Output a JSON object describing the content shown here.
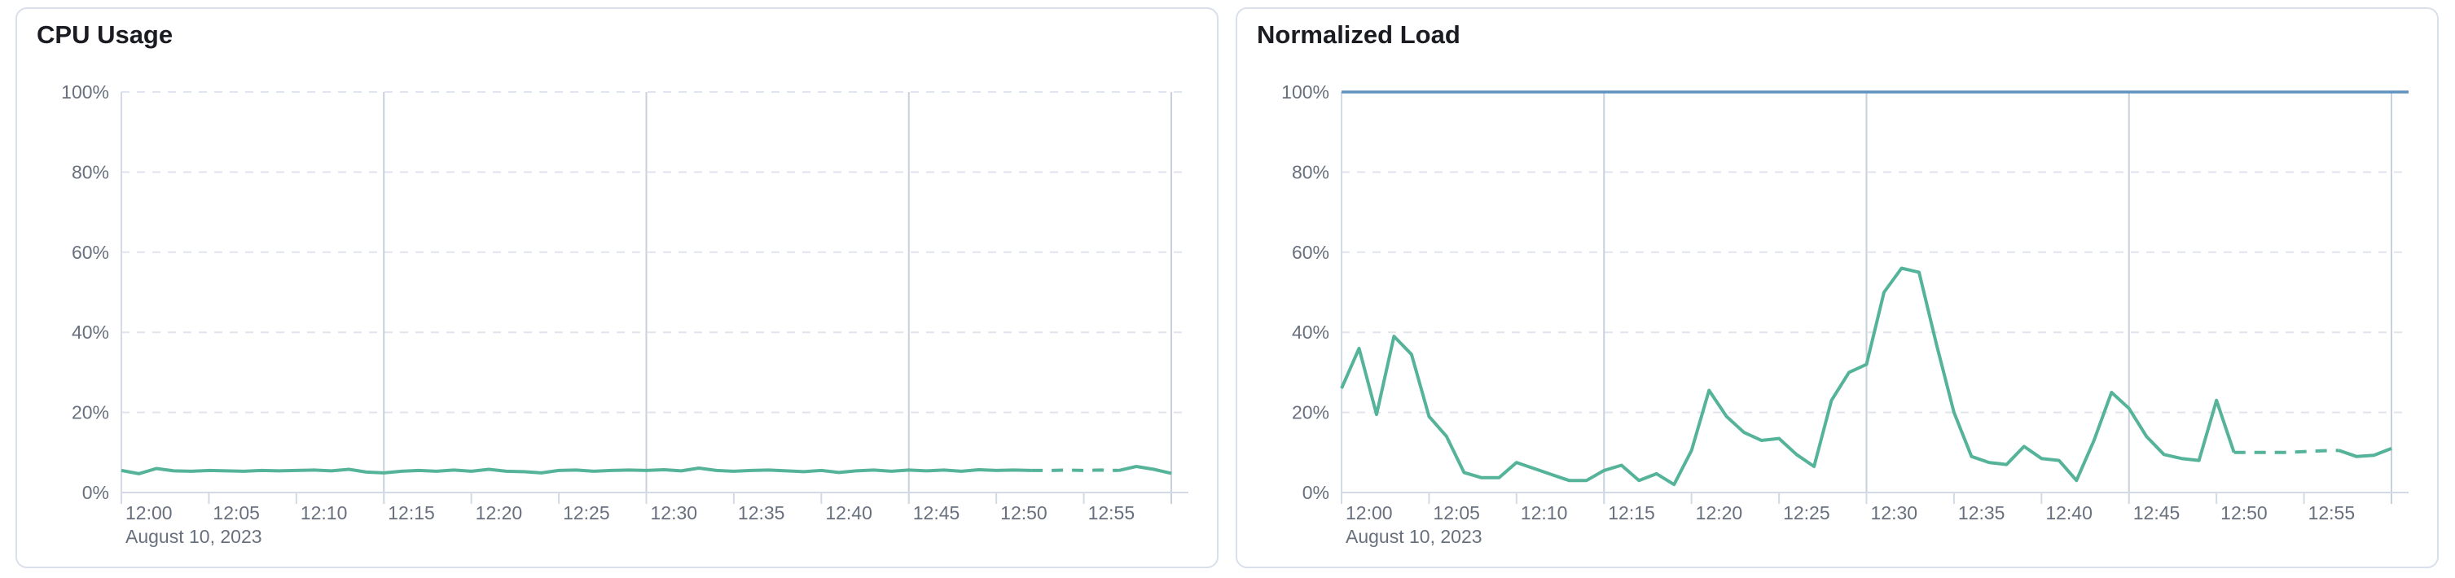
{
  "page": {
    "background_color": "#ffffff",
    "card_border_color": "#d9dfeb",
    "colors": {
      "series_green": "#54b399",
      "threshold_blue": "#6092c0",
      "gridline_solid": "#d3dae6",
      "gridline_major": "#c9cfdb",
      "gridline_dashed": "#e0e4ee",
      "axis_text": "#69707d",
      "title_text": "#1a1c21"
    }
  },
  "chart_data": [
    {
      "type": "line",
      "title": "CPU Usage",
      "x_axis": {
        "date_label": "August 10, 2023",
        "tick_labels": [
          "12:00",
          "12:05",
          "12:10",
          "12:15",
          "12:20",
          "12:25",
          "12:30",
          "12:35",
          "12:40",
          "12:45",
          "12:50",
          "12:55"
        ],
        "tick_minutes": [
          0,
          5,
          10,
          15,
          20,
          25,
          30,
          35,
          40,
          45,
          50,
          55
        ],
        "major_gridline_minutes": [
          15,
          30,
          45,
          60
        ],
        "start_minute": 0,
        "end_minute": 60
      },
      "y_axis": {
        "tick_labels": [
          "0%",
          "20%",
          "40%",
          "60%",
          "80%",
          "100%"
        ],
        "tick_values": [
          0,
          20,
          40,
          60,
          80,
          100
        ],
        "lim": [
          0,
          100
        ]
      },
      "grid": {
        "horizontal_dashed": true,
        "vertical_major_solid": true
      },
      "threshold_line": null,
      "series": [
        {
          "name": "CPU Usage",
          "color": "#54b399",
          "start_minute": 0,
          "interval_minutes": 1,
          "values": [
            5.5,
            4.7,
            6.0,
            5.4,
            5.3,
            5.5,
            5.4,
            5.3,
            5.5,
            5.4,
            5.5,
            5.6,
            5.4,
            5.8,
            5.1,
            4.9,
            5.3,
            5.5,
            5.3,
            5.6,
            5.3,
            5.8,
            5.3,
            5.2,
            4.9,
            5.5,
            5.6,
            5.3,
            5.5,
            5.6,
            5.5,
            5.7,
            5.4,
            6.1,
            5.5,
            5.3,
            5.5,
            5.6,
            5.4,
            5.2,
            5.5,
            5.0,
            5.4,
            5.6,
            5.3,
            5.6,
            5.4,
            5.6,
            5.3,
            5.7,
            5.5,
            5.6,
            5.5,
            5.5,
            5.6,
            5.5,
            5.6,
            5.5,
            6.5,
            5.8,
            4.8
          ],
          "dashed_segment": {
            "from_index": 52,
            "to_index": 57
          }
        }
      ]
    },
    {
      "type": "line",
      "title": "Normalized Load",
      "x_axis": {
        "date_label": "August 10, 2023",
        "tick_labels": [
          "12:00",
          "12:05",
          "12:10",
          "12:15",
          "12:20",
          "12:25",
          "12:30",
          "12:35",
          "12:40",
          "12:45",
          "12:50",
          "12:55"
        ],
        "tick_minutes": [
          0,
          5,
          10,
          15,
          20,
          25,
          30,
          35,
          40,
          45,
          50,
          55
        ],
        "major_gridline_minutes": [
          15,
          30,
          45,
          60
        ],
        "start_minute": 0,
        "end_minute": 60
      },
      "y_axis": {
        "tick_labels": [
          "0%",
          "20%",
          "40%",
          "60%",
          "80%",
          "100%"
        ],
        "tick_values": [
          0,
          20,
          40,
          60,
          80,
          100
        ],
        "lim": [
          0,
          100
        ]
      },
      "grid": {
        "horizontal_dashed": true,
        "vertical_major_solid": true
      },
      "threshold_line": {
        "value": 100,
        "color": "#6092c0"
      },
      "series": [
        {
          "name": "Normalized Load",
          "color": "#54b399",
          "start_minute": 0,
          "interval_minutes": 1,
          "values": [
            26,
            36,
            19.5,
            39,
            34.5,
            19,
            14,
            5,
            3.7,
            3.7,
            7.5,
            6,
            4.5,
            3,
            3,
            5.5,
            6.8,
            3,
            4.7,
            2,
            10.5,
            25.5,
            19,
            15,
            13,
            13.5,
            9.5,
            6.5,
            23,
            30,
            32,
            50,
            56,
            55,
            37,
            20,
            9,
            7.5,
            7,
            11.5,
            8.5,
            8,
            3,
            13,
            25,
            21,
            14,
            9.5,
            8.5,
            8,
            23,
            10,
            10,
            10,
            10,
            10.2,
            10.4,
            10.5,
            9,
            9.3,
            11
          ],
          "dashed_segment": {
            "from_index": 51,
            "to_index": 57
          }
        }
      ]
    }
  ]
}
